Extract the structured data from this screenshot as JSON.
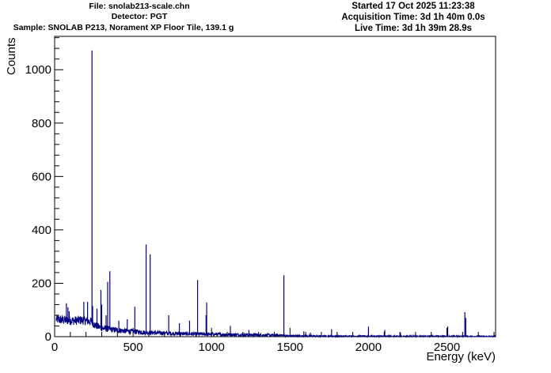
{
  "header": {
    "file": "File: snolab213-scale.chn",
    "detector": "Detector: PGT",
    "sample": "Sample: SNOLAB P213, Norament XP Floor Tile, 139.1 g",
    "started": "Started 17 Oct 2025 11:23:38",
    "acquisition": "Acquisition Time: 3d 1h 40m 0.0s",
    "live": "Live Time: 3d 1h 39m 28.9s"
  },
  "chart_data": {
    "type": "line",
    "xlabel": "Energy (keV)",
    "ylabel": "Counts",
    "xlim": [
      0,
      2810
    ],
    "ylim": [
      0,
      1125
    ],
    "x_ticks": [
      0,
      500,
      1000,
      1500,
      2000,
      2500
    ],
    "y_ticks": [
      0,
      200,
      400,
      600,
      800,
      1000
    ],
    "color": "#000080",
    "background_levels": [
      {
        "x": 10,
        "y": 65
      },
      {
        "x": 60,
        "y": 62
      },
      {
        "x": 120,
        "y": 60
      },
      {
        "x": 180,
        "y": 62
      },
      {
        "x": 238,
        "y": 55
      },
      {
        "x": 260,
        "y": 42
      },
      {
        "x": 300,
        "y": 32
      },
      {
        "x": 400,
        "y": 24
      },
      {
        "x": 500,
        "y": 19
      },
      {
        "x": 600,
        "y": 15
      },
      {
        "x": 800,
        "y": 11
      },
      {
        "x": 1000,
        "y": 9
      },
      {
        "x": 1200,
        "y": 7
      },
      {
        "x": 1460,
        "y": 5
      },
      {
        "x": 1470,
        "y": 3
      },
      {
        "x": 1700,
        "y": 2
      },
      {
        "x": 2000,
        "y": 1.5
      },
      {
        "x": 2600,
        "y": 1
      },
      {
        "x": 2810,
        "y": 0.5
      }
    ],
    "peaks": [
      {
        "x": 75,
        "y": 125
      },
      {
        "x": 85,
        "y": 110
      },
      {
        "x": 93,
        "y": 95
      },
      {
        "x": 186,
        "y": 130
      },
      {
        "x": 210,
        "y": 130
      },
      {
        "x": 238,
        "y": 1072
      },
      {
        "x": 242,
        "y": 115
      },
      {
        "x": 270,
        "y": 105
      },
      {
        "x": 295,
        "y": 175
      },
      {
        "x": 300,
        "y": 120
      },
      {
        "x": 328,
        "y": 80
      },
      {
        "x": 338,
        "y": 205
      },
      {
        "x": 352,
        "y": 245
      },
      {
        "x": 409,
        "y": 60
      },
      {
        "x": 463,
        "y": 65
      },
      {
        "x": 511,
        "y": 112
      },
      {
        "x": 583,
        "y": 345
      },
      {
        "x": 609,
        "y": 308
      },
      {
        "x": 727,
        "y": 80
      },
      {
        "x": 795,
        "y": 50
      },
      {
        "x": 860,
        "y": 60
      },
      {
        "x": 911,
        "y": 212
      },
      {
        "x": 965,
        "y": 80
      },
      {
        "x": 969,
        "y": 128
      },
      {
        "x": 1120,
        "y": 40
      },
      {
        "x": 1238,
        "y": 25
      },
      {
        "x": 1461,
        "y": 230
      },
      {
        "x": 1588,
        "y": 20
      },
      {
        "x": 1630,
        "y": 15
      },
      {
        "x": 1765,
        "y": 28
      },
      {
        "x": 2000,
        "y": 38
      },
      {
        "x": 2104,
        "y": 25
      },
      {
        "x": 2204,
        "y": 15
      },
      {
        "x": 2505,
        "y": 38
      },
      {
        "x": 2614,
        "y": 92
      },
      {
        "x": 2620,
        "y": 70
      }
    ]
  }
}
